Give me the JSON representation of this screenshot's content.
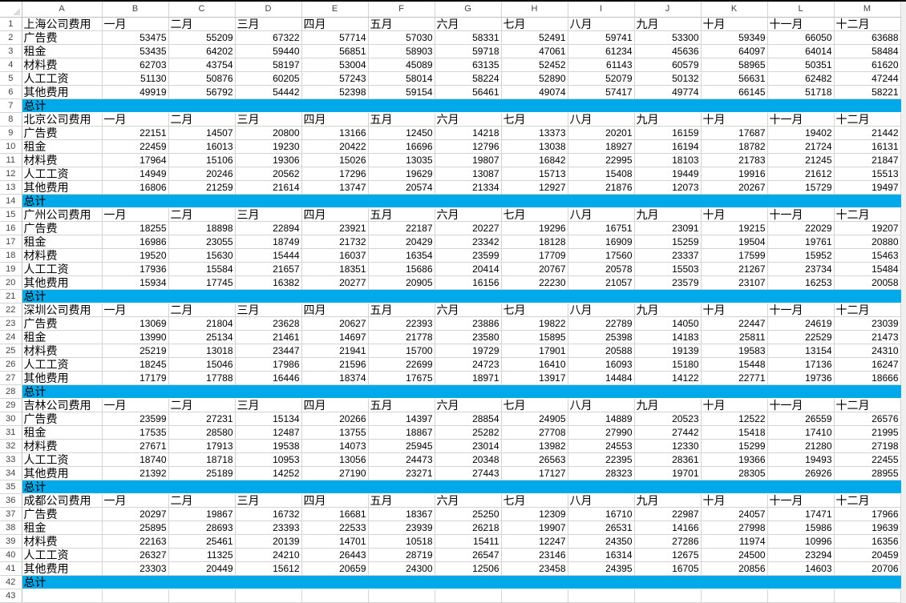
{
  "columns": [
    "A",
    "B",
    "C",
    "D",
    "E",
    "F",
    "G",
    "H",
    "I",
    "J",
    "K",
    "L",
    "M"
  ],
  "months": [
    "一月",
    "二月",
    "三月",
    "四月",
    "五月",
    "六月",
    "七月",
    "八月",
    "九月",
    "十月",
    "十一月",
    "十二月"
  ],
  "row_labels": [
    "广告费",
    "租金",
    "材料费",
    "人工工资",
    "其他费用"
  ],
  "total_label": "总计",
  "total_fill_color": "#00a9e9",
  "sections": [
    {
      "title": "上海公司费用",
      "values": [
        [
          53475,
          55209,
          67322,
          57714,
          57030,
          58331,
          52491,
          59741,
          53300,
          59349,
          66050,
          63688
        ],
        [
          53435,
          64202,
          59440,
          56851,
          58903,
          59718,
          47061,
          61234,
          45636,
          64097,
          64014,
          58484
        ],
        [
          62703,
          43754,
          58197,
          53004,
          45089,
          63135,
          52452,
          61143,
          60579,
          58965,
          50351,
          61620
        ],
        [
          51130,
          50876,
          60205,
          57243,
          58014,
          58224,
          52890,
          52079,
          50132,
          56631,
          62482,
          47244
        ],
        [
          49919,
          56792,
          54442,
          52398,
          59154,
          56461,
          49074,
          57417,
          49774,
          66145,
          51718,
          58221
        ]
      ]
    },
    {
      "title": "北京公司费用",
      "values": [
        [
          22151,
          14507,
          20800,
          13166,
          12450,
          14218,
          13373,
          20201,
          16159,
          17687,
          19402,
          21442
        ],
        [
          22459,
          16013,
          19230,
          20422,
          16696,
          12796,
          13038,
          18927,
          16194,
          18782,
          21724,
          16131
        ],
        [
          17964,
          15106,
          19306,
          15026,
          13035,
          19807,
          16842,
          22995,
          18103,
          21783,
          21245,
          21847
        ],
        [
          14949,
          20246,
          20562,
          17296,
          19629,
          13087,
          15713,
          15408,
          19449,
          19916,
          21612,
          15513
        ],
        [
          16806,
          21259,
          21614,
          13747,
          20574,
          21334,
          12927,
          21876,
          12073,
          20267,
          15729,
          19497
        ]
      ]
    },
    {
      "title": "广州公司费用",
      "values": [
        [
          18255,
          18898,
          22894,
          23921,
          22187,
          20227,
          19296,
          16751,
          23091,
          19215,
          22029,
          19207
        ],
        [
          16986,
          23055,
          18749,
          21732,
          20429,
          23342,
          18128,
          16909,
          15259,
          19504,
          19761,
          20880
        ],
        [
          19520,
          15630,
          15444,
          16037,
          16354,
          23599,
          17709,
          17560,
          23337,
          17599,
          15952,
          15463
        ],
        [
          17936,
          15584,
          21657,
          18351,
          15686,
          20414,
          20767,
          20578,
          15503,
          21267,
          23734,
          15484
        ],
        [
          15934,
          17745,
          16382,
          20277,
          20905,
          16156,
          22230,
          21057,
          23579,
          23107,
          16253,
          20058
        ]
      ]
    },
    {
      "title": "深圳公司费用",
      "values": [
        [
          13069,
          21804,
          23628,
          20627,
          22393,
          23886,
          19822,
          22789,
          14050,
          22447,
          24619,
          23039
        ],
        [
          13990,
          25134,
          21461,
          14697,
          21778,
          23580,
          15895,
          25398,
          14183,
          25811,
          22529,
          21473
        ],
        [
          25219,
          13018,
          23447,
          21941,
          15700,
          19729,
          17901,
          20588,
          19139,
          19583,
          13154,
          24310
        ],
        [
          18245,
          15046,
          17986,
          21596,
          22699,
          24723,
          16410,
          16093,
          15180,
          15448,
          17136,
          16247
        ],
        [
          17179,
          17788,
          16446,
          18374,
          17675,
          18971,
          13917,
          14484,
          14122,
          22771,
          19736,
          18666
        ]
      ]
    },
    {
      "title": "吉林公司费用",
      "values": [
        [
          23599,
          27231,
          15134,
          20266,
          14397,
          28854,
          24905,
          14889,
          20523,
          12522,
          26559,
          26576
        ],
        [
          17535,
          28580,
          12487,
          13755,
          18867,
          25282,
          27708,
          27990,
          27442,
          15418,
          17410,
          21995
        ],
        [
          27671,
          17913,
          19538,
          14073,
          25945,
          23014,
          13982,
          24553,
          12330,
          15299,
          21280,
          27198
        ],
        [
          18740,
          18718,
          10953,
          13056,
          24473,
          20348,
          26563,
          22395,
          28361,
          19366,
          19493,
          22455
        ],
        [
          21392,
          25189,
          14252,
          27190,
          23271,
          27443,
          17127,
          28323,
          19701,
          28305,
          26926,
          28955
        ]
      ]
    },
    {
      "title": "成都公司费用",
      "values": [
        [
          20297,
          19867,
          16732,
          16681,
          18367,
          25250,
          12309,
          16710,
          22987,
          24057,
          17471,
          17966
        ],
        [
          25895,
          28693,
          23393,
          22533,
          23939,
          26218,
          19907,
          26531,
          14166,
          27998,
          15986,
          19639
        ],
        [
          22163,
          25461,
          20139,
          14701,
          10518,
          15411,
          12247,
          24350,
          27286,
          11974,
          10996,
          16356
        ],
        [
          26327,
          11325,
          24210,
          26443,
          28719,
          26547,
          23146,
          16314,
          12675,
          24500,
          23294,
          20459
        ],
        [
          23303,
          20449,
          15612,
          20659,
          24300,
          12506,
          23458,
          24395,
          16705,
          20856,
          14603,
          20706
        ]
      ]
    }
  ]
}
